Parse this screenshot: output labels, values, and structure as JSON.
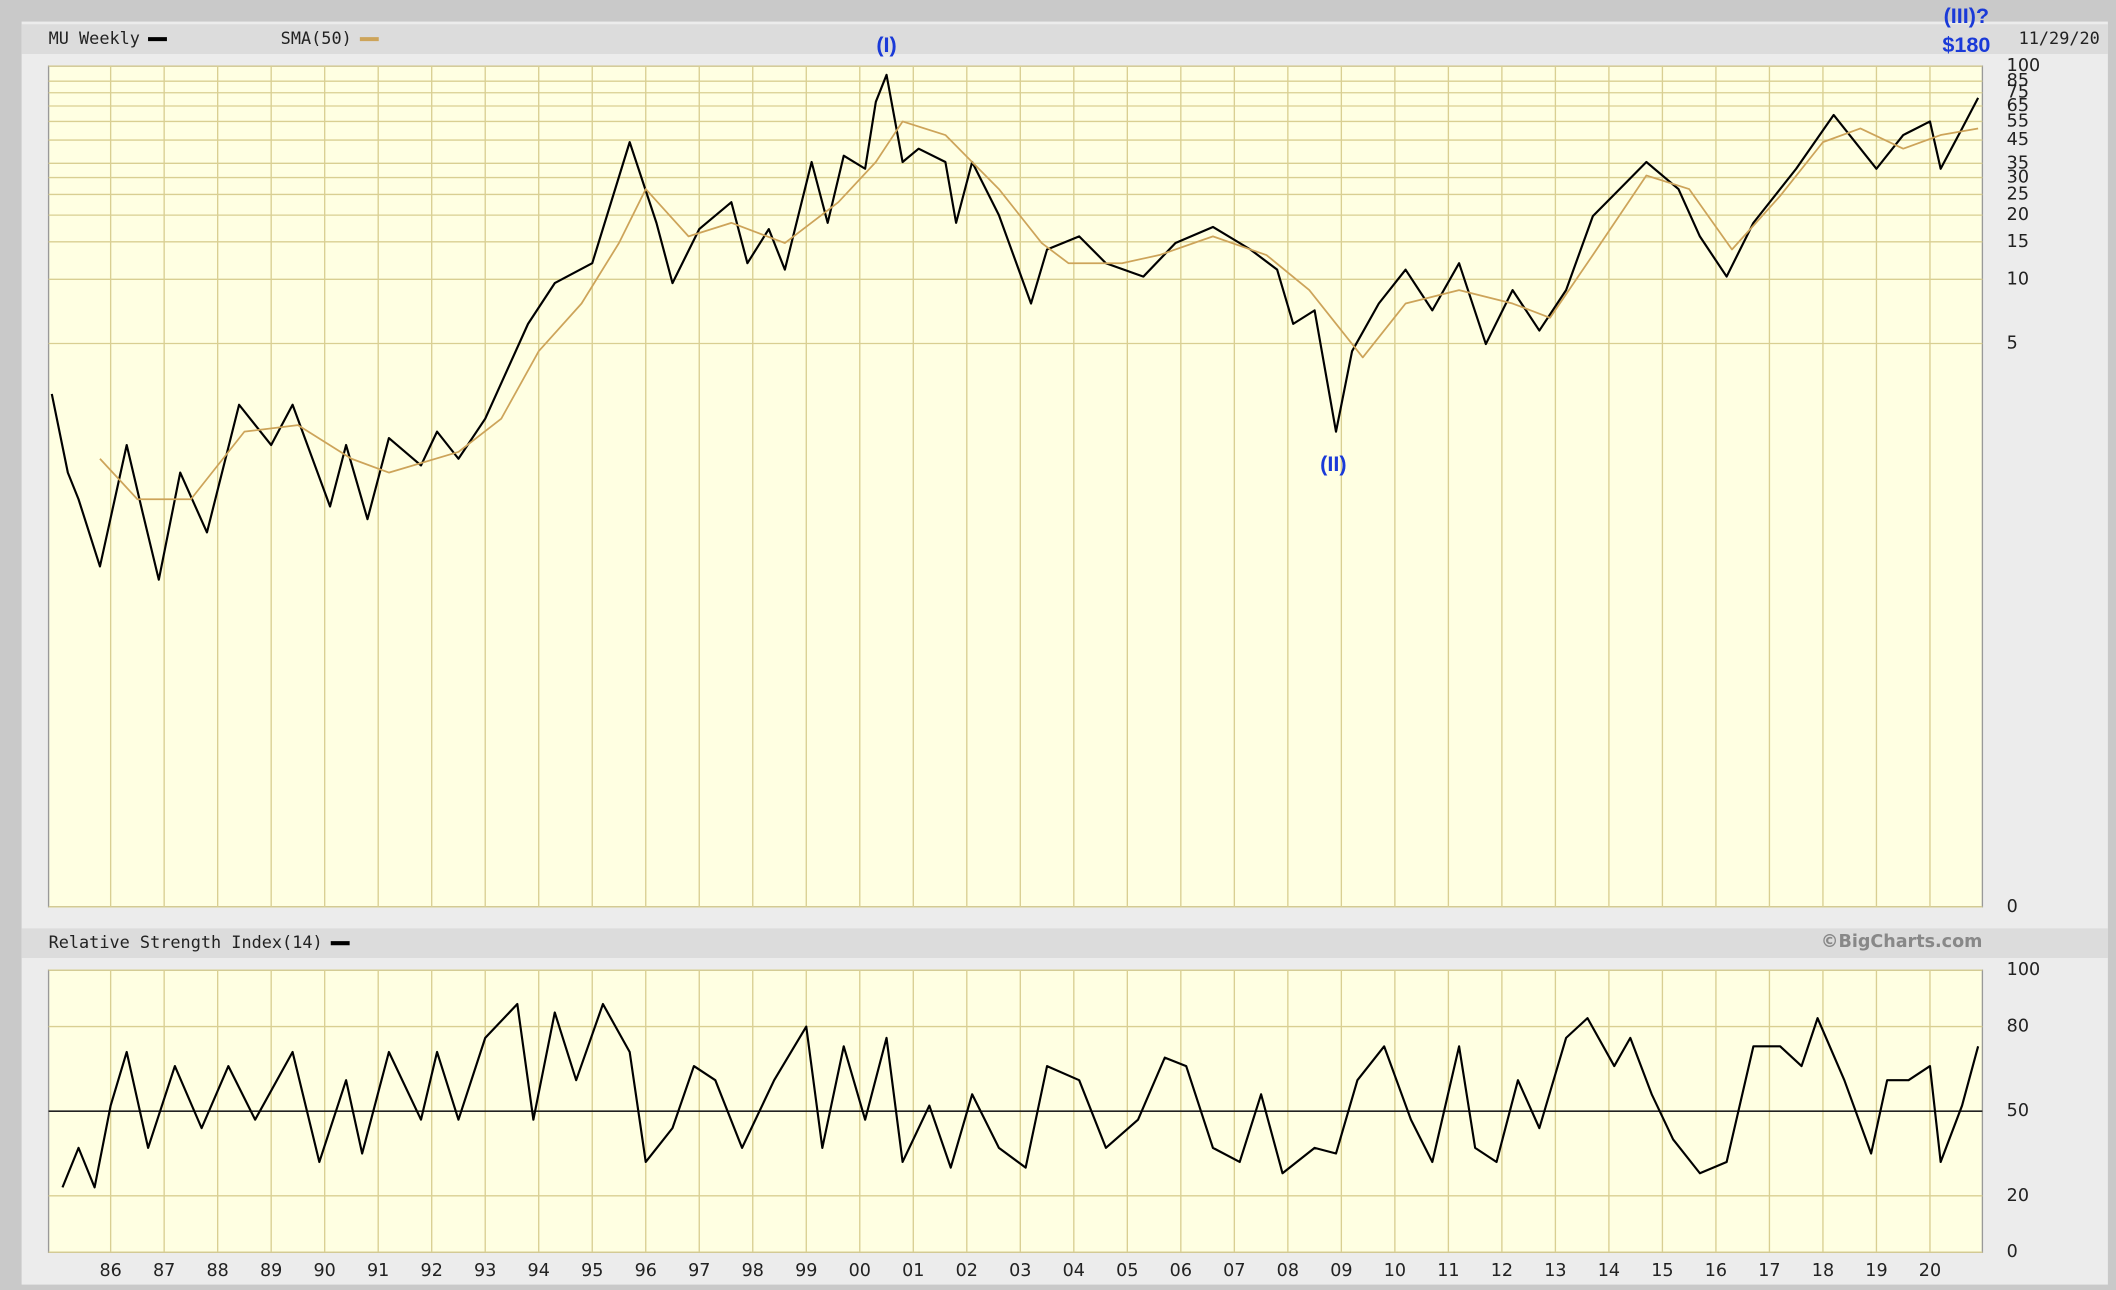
{
  "chart_data": [
    {
      "type": "line",
      "log_scale": true,
      "grid": true,
      "legend": [
        "MU Weekly",
        "SMA(50)"
      ],
      "date": "11/29/20",
      "xlim": [
        1984.84,
        2020.98
      ],
      "ylim": [
        0.0114,
        100
      ],
      "yticks": [
        {
          "value": 0.0114,
          "label": "0"
        },
        5,
        10,
        15,
        20,
        25,
        30,
        35,
        45,
        55,
        65,
        75,
        85,
        100
      ],
      "series": [
        {
          "name": "MU Weekly",
          "color": "#000000",
          "x": [
            1984.9,
            1985.2,
            1985.4,
            1985.8,
            1986.3,
            1986.6,
            1986.9,
            1987.3,
            1987.8,
            1988.4,
            1989.0,
            1989.4,
            1990.1,
            1990.4,
            1990.8,
            1991.2,
            1991.8,
            1992.1,
            1992.5,
            1993.0,
            1993.8,
            1994.3,
            1995.0,
            1995.7,
            1996.2,
            1996.5,
            1997.0,
            1997.6,
            1997.9,
            1998.3,
            1998.6,
            1999.1,
            1999.4,
            1999.7,
            2000.1,
            2000.3,
            2000.5,
            2000.8,
            2001.1,
            2001.6,
            2001.8,
            2002.1,
            2002.6,
            2003.2,
            2003.5,
            2004.1,
            2004.6,
            2005.3,
            2005.9,
            2006.6,
            2007.3,
            2007.8,
            2008.1,
            2008.5,
            2008.9,
            2009.2,
            2009.7,
            2010.2,
            2010.7,
            2011.2,
            2011.7,
            2012.2,
            2012.7,
            2013.2,
            2013.7,
            2014.2,
            2014.7,
            2015.3,
            2015.7,
            2016.2,
            2016.7,
            2017.5,
            2018.2,
            2019.0,
            2019.5,
            2020.0,
            2020.2,
            2020.6,
            2020.9
          ],
          "values": [
            2.9,
            1.24,
            0.93,
            0.45,
            1.67,
            0.8,
            0.39,
            1.24,
            0.65,
            2.58,
            1.67,
            2.58,
            0.86,
            1.67,
            0.75,
            1.8,
            1.34,
            1.93,
            1.44,
            2.22,
            6.18,
            9.6,
            11.9,
            44,
            18.4,
            9.6,
            17.2,
            23,
            11.9,
            17.2,
            11.1,
            35.5,
            18.4,
            38,
            33,
            68,
            91,
            35.5,
            41,
            35.5,
            18.4,
            35.5,
            20,
            7.7,
            13.8,
            15.9,
            11.9,
            10.3,
            14.8,
            17.6,
            13.8,
            11.1,
            6.18,
            7.15,
            1.93,
            4.6,
            7.7,
            11.1,
            7.15,
            11.9,
            4.97,
            8.9,
            5.75,
            8.9,
            19.8,
            26.5,
            35.5,
            26.5,
            15.9,
            10.3,
            18.4,
            33,
            59,
            33,
            47.5,
            55,
            33,
            51,
            71
          ]
        },
        {
          "name": "SMA(50)",
          "color": "#cda45a",
          "x": [
            1985.8,
            1986.5,
            1987.5,
            1988.5,
            1989.5,
            1990.5,
            1991.2,
            1992.5,
            1993.3,
            1994.0,
            1994.8,
            1995.5,
            1996.0,
            1996.8,
            1997.6,
            1998.6,
            1999.6,
            2000.3,
            2000.8,
            2001.6,
            2002.6,
            2003.4,
            2003.9,
            2004.9,
            2005.6,
            2006.6,
            2007.6,
            2008.4,
            2009.4,
            2010.2,
            2011.2,
            2012.2,
            2012.9,
            2013.7,
            2014.7,
            2015.5,
            2016.3,
            2017.2,
            2018.0,
            2018.7,
            2019.5,
            2020.2,
            2020.9
          ],
          "values": [
            1.44,
            0.93,
            0.93,
            1.93,
            2.07,
            1.44,
            1.24,
            1.55,
            2.22,
            4.6,
            7.7,
            14.8,
            26.5,
            15.9,
            18.4,
            14.8,
            23,
            35.5,
            55,
            47.5,
            26.5,
            14.8,
            11.9,
            11.9,
            13,
            15.9,
            13,
            8.9,
            4.3,
            7.7,
            8.9,
            7.7,
            6.6,
            13,
            30.7,
            26.5,
            13.8,
            24.6,
            44,
            51,
            41,
            47.5,
            51
          ]
        }
      ],
      "annotations": [
        {
          "text": "(I)",
          "x": 2000.5,
          "y": 124
        },
        {
          "text": "(II)",
          "x": 2008.85,
          "y": 1.34
        },
        {
          "text": "(III)?",
          "x": 2020.68,
          "y": 169
        },
        {
          "text": "$180",
          "x": 2020.68,
          "y": 124
        }
      ]
    },
    {
      "type": "line",
      "grid": true,
      "legend": [
        "Relative Strength Index(14)"
      ],
      "credit": "©BigCharts.com",
      "xlim": [
        1984.84,
        2020.98
      ],
      "xticks": [
        {
          "value": 1986,
          "label": "86"
        },
        {
          "value": 1987,
          "label": "87"
        },
        {
          "value": 1988,
          "label": "88"
        },
        {
          "value": 1989,
          "label": "89"
        },
        {
          "value": 1990,
          "label": "90"
        },
        {
          "value": 1991,
          "label": "91"
        },
        {
          "value": 1992,
          "label": "92"
        },
        {
          "value": 1993,
          "label": "93"
        },
        {
          "value": 1994,
          "label": "94"
        },
        {
          "value": 1995,
          "label": "95"
        },
        {
          "value": 1996,
          "label": "96"
        },
        {
          "value": 1997,
          "label": "97"
        },
        {
          "value": 1998,
          "label": "98"
        },
        {
          "value": 1999,
          "label": "99"
        },
        {
          "value": 2000,
          "label": "00"
        },
        {
          "value": 2001,
          "label": "01"
        },
        {
          "value": 2002,
          "label": "02"
        },
        {
          "value": 2003,
          "label": "03"
        },
        {
          "value": 2004,
          "label": "04"
        },
        {
          "value": 2005,
          "label": "05"
        },
        {
          "value": 2006,
          "label": "06"
        },
        {
          "value": 2007,
          "label": "07"
        },
        {
          "value": 2008,
          "label": "08"
        },
        {
          "value": 2009,
          "label": "09"
        },
        {
          "value": 2010,
          "label": "10"
        },
        {
          "value": 2011,
          "label": "11"
        },
        {
          "value": 2012,
          "label": "12"
        },
        {
          "value": 2013,
          "label": "13"
        },
        {
          "value": 2014,
          "label": "14"
        },
        {
          "value": 2015,
          "label": "15"
        },
        {
          "value": 2016,
          "label": "16"
        },
        {
          "value": 2017,
          "label": "17"
        },
        {
          "value": 2018,
          "label": "18"
        },
        {
          "value": 2019,
          "label": "19"
        },
        {
          "value": 2020,
          "label": "20"
        }
      ],
      "ylim": [
        0,
        100
      ],
      "yticks": [
        0,
        20,
        50,
        80,
        100
      ],
      "refline": 50,
      "series": [
        {
          "name": "Relative Strength Index(14)",
          "color": "#000000",
          "x": [
            1985.1,
            1985.4,
            1985.7,
            1986.0,
            1986.3,
            1986.7,
            1987.2,
            1987.7,
            1988.2,
            1988.7,
            1989.4,
            1989.9,
            1990.4,
            1990.7,
            1991.2,
            1991.8,
            1992.1,
            1992.5,
            1993.0,
            1993.6,
            1993.9,
            1994.3,
            1994.7,
            1995.2,
            1995.7,
            1996.0,
            1996.5,
            1996.9,
            1997.3,
            1997.8,
            1998.4,
            1999.0,
            1999.3,
            1999.7,
            2000.1,
            2000.5,
            2000.8,
            2001.3,
            2001.7,
            2002.1,
            2002.6,
            2003.1,
            2003.5,
            2004.1,
            2004.6,
            2005.2,
            2005.7,
            2006.1,
            2006.6,
            2007.1,
            2007.5,
            2007.9,
            2008.5,
            2008.9,
            2009.3,
            2009.8,
            2010.3,
            2010.7,
            2011.2,
            2011.5,
            2011.9,
            2012.3,
            2012.7,
            2013.2,
            2013.6,
            2014.1,
            2014.4,
            2014.8,
            2015.2,
            2015.7,
            2016.2,
            2016.7,
            2017.2,
            2017.6,
            2017.9,
            2018.4,
            2018.9,
            2019.2,
            2019.6,
            2020.0,
            2020.2,
            2020.6,
            2020.9
          ],
          "values": [
            23,
            37,
            23,
            52,
            71,
            37,
            66,
            44,
            66,
            47,
            71,
            32,
            61,
            35,
            71,
            47,
            71,
            47,
            76,
            88,
            47,
            85,
            61,
            88,
            71,
            32,
            44,
            66,
            61,
            37,
            61,
            80,
            37,
            73,
            47,
            76,
            32,
            52,
            30,
            56,
            37,
            30,
            66,
            61,
            37,
            47,
            69,
            66,
            37,
            32,
            56,
            28,
            37,
            35,
            61,
            73,
            47,
            32,
            73,
            37,
            32,
            61,
            44,
            76,
            83,
            66,
            76,
            56,
            40,
            28,
            32,
            73,
            73,
            66,
            83,
            61,
            35,
            61,
            61,
            66,
            32,
            52,
            73
          ]
        }
      ]
    }
  ]
}
